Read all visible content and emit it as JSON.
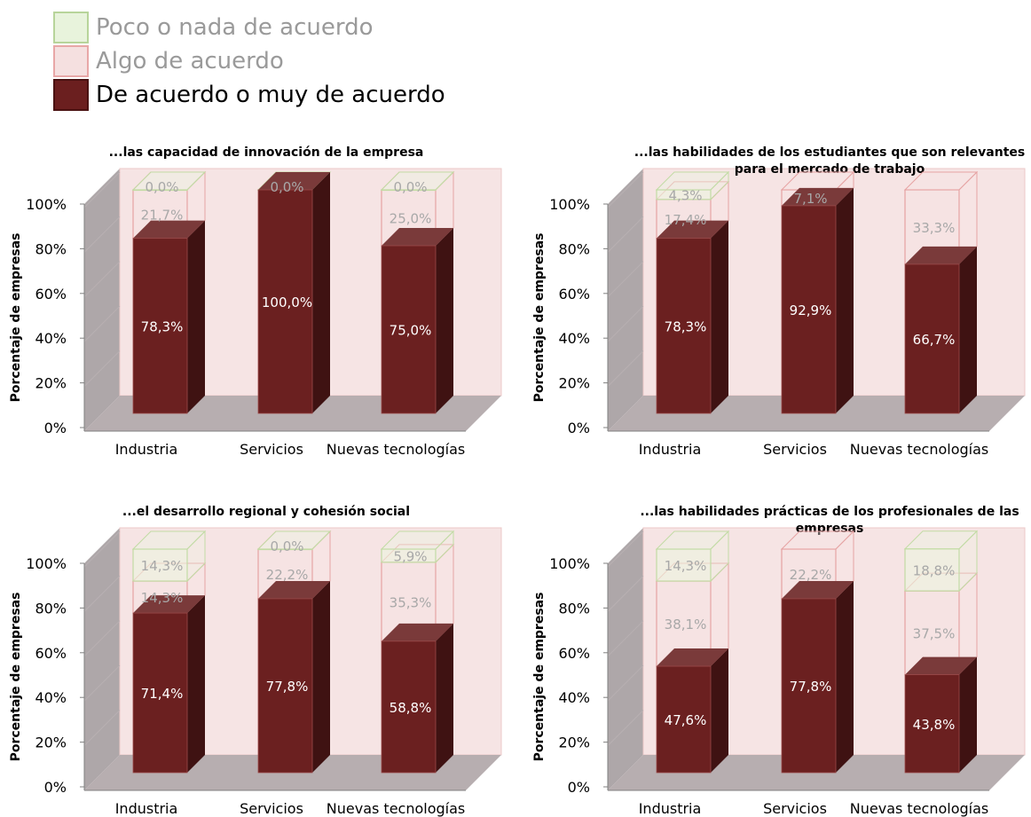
{
  "legend": {
    "items": [
      {
        "label": "Poco o nada de acuerdo",
        "fill": "#e8f3dc",
        "stroke": "#b7d49a",
        "text_color": "#9a9a9a"
      },
      {
        "label": "Algo de acuerdo",
        "fill": "#f5e0e0",
        "stroke": "#e8a7a7",
        "text_color": "#9a9a9a"
      },
      {
        "label": "De acuerdo o muy de acuerdo",
        "fill": "#6b1f1f",
        "stroke": "#4a1212",
        "text_color": "#000000"
      }
    ]
  },
  "colors": {
    "de_acuerdo_front": "#6b2020",
    "de_acuerdo_side": "#3f1212",
    "de_acuerdo_top": "#7a3a3a",
    "algo_fill": "#f7e3e3",
    "algo_stroke": "#e6a3a3",
    "poco_fill": "#ecf5e0",
    "poco_stroke": "#c2dba4",
    "wall": "#f6e4e4",
    "side_wall": "#a0989a",
    "floor": "#b7aeb0",
    "label_light": "#ffffff",
    "label_faded": "#a8a8a8"
  },
  "chart_data": [
    {
      "type": "bar",
      "stacked": true,
      "title_lines": [
        "...las capacidad de innovación de la empresa"
      ],
      "ylabel": "Porcentaje de empresas",
      "ylim": [
        0,
        100
      ],
      "yticks": [
        "0%",
        "20%",
        "40%",
        "60%",
        "80%",
        "100%"
      ],
      "categories": [
        "Industria",
        "Servicios",
        "Nuevas tecnologías"
      ],
      "series": [
        {
          "name": "De acuerdo o muy de acuerdo",
          "values": [
            78.3,
            100.0,
            75.0
          ],
          "labels": [
            "78,3%",
            "100,0%",
            "75,0%"
          ]
        },
        {
          "name": "Algo de acuerdo",
          "values": [
            21.7,
            0.0,
            25.0
          ],
          "labels": [
            "21,7%",
            "",
            "25,0%"
          ]
        },
        {
          "name": "Poco o nada de acuerdo",
          "values": [
            0.0,
            0.0,
            0.0
          ],
          "labels": [
            "0,0%",
            "0,0%",
            "0,0%"
          ]
        }
      ]
    },
    {
      "type": "bar",
      "stacked": true,
      "title_lines": [
        "...las habilidades de los estudiantes que son relevantes",
        "para el mercado de trabajo"
      ],
      "ylabel": "Porcentaje de empresas",
      "ylim": [
        0,
        100
      ],
      "yticks": [
        "0%",
        "20%",
        "40%",
        "60%",
        "80%",
        "100%"
      ],
      "categories": [
        "Industria",
        "Servicios",
        "Nuevas tecnologías"
      ],
      "series": [
        {
          "name": "De acuerdo o muy de acuerdo",
          "values": [
            78.3,
            92.9,
            66.7
          ],
          "labels": [
            "78,3%",
            "92,9%",
            "66,7%"
          ]
        },
        {
          "name": "Algo de acuerdo",
          "values": [
            17.4,
            7.1,
            33.3
          ],
          "labels": [
            "17,4%",
            "7,1%",
            "33,3%"
          ]
        },
        {
          "name": "Poco o nada de acuerdo",
          "values": [
            4.3,
            0.0,
            0.0
          ],
          "labels": [
            "4,3%",
            "",
            ""
          ]
        }
      ]
    },
    {
      "type": "bar",
      "stacked": true,
      "title_lines": [
        "...el desarrollo regional y cohesión social"
      ],
      "ylabel": "Porcentaje de empresas",
      "ylim": [
        0,
        100
      ],
      "yticks": [
        "0%",
        "20%",
        "40%",
        "60%",
        "80%",
        "100%"
      ],
      "categories": [
        "Industria",
        "Servicios",
        "Nuevas tecnologías"
      ],
      "series": [
        {
          "name": "De acuerdo o muy de acuerdo",
          "values": [
            71.4,
            77.8,
            58.8
          ],
          "labels": [
            "71,4%",
            "77,8%",
            "58,8%"
          ]
        },
        {
          "name": "Algo de acuerdo",
          "values": [
            14.3,
            22.2,
            35.3
          ],
          "labels": [
            "14,3%",
            "22,2%",
            "35,3%"
          ]
        },
        {
          "name": "Poco o nada de acuerdo",
          "values": [
            14.3,
            0.0,
            5.9
          ],
          "labels": [
            "14,3%",
            "0,0%",
            "5,9%"
          ]
        }
      ]
    },
    {
      "type": "bar",
      "stacked": true,
      "title_lines": [
        "...las habilidades prácticas de los profesionales de las",
        "empresas"
      ],
      "ylabel": "Porcentaje de empresas",
      "ylim": [
        0,
        100
      ],
      "yticks": [
        "0%",
        "20%",
        "40%",
        "60%",
        "80%",
        "100%"
      ],
      "categories": [
        "Industria",
        "Servicios",
        "Nuevas tecnologías"
      ],
      "series": [
        {
          "name": "De acuerdo o muy de acuerdo",
          "values": [
            47.6,
            77.8,
            43.8
          ],
          "labels": [
            "47,6%",
            "77,8%",
            "43,8%"
          ]
        },
        {
          "name": "Algo de acuerdo",
          "values": [
            38.1,
            22.2,
            37.5
          ],
          "labels": [
            "38,1%",
            "22,2%",
            "37,5%"
          ]
        },
        {
          "name": "Poco o nada de acuerdo",
          "values": [
            14.3,
            0.0,
            18.8
          ],
          "labels": [
            "14,3%",
            "",
            "18,8%"
          ]
        }
      ]
    }
  ]
}
